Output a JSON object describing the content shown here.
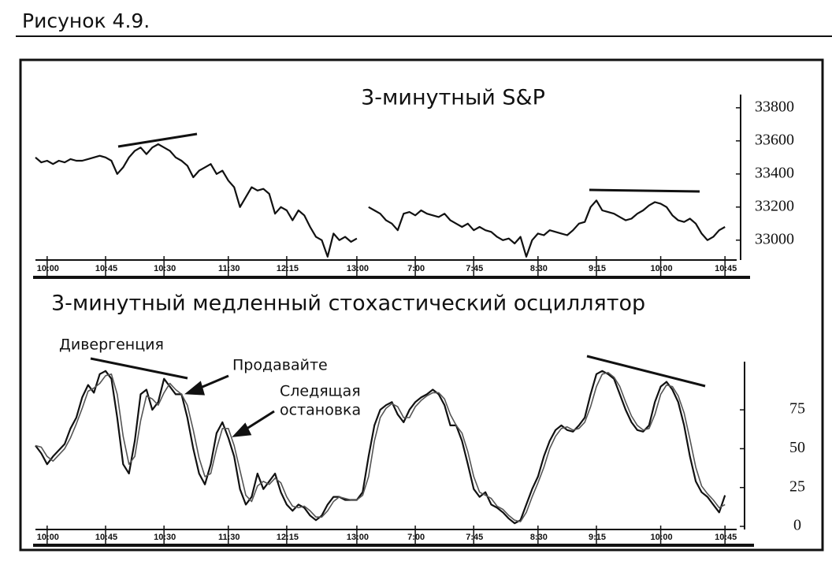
{
  "figure_label": "Рисунок 4.9.",
  "chart_data": [
    {
      "type": "line",
      "title": "3-минутный S&P",
      "x": [
        0,
        1,
        2,
        3,
        4,
        5,
        6,
        7,
        8,
        9,
        10,
        11,
        12,
        13,
        14,
        15,
        16,
        17,
        18,
        19,
        20,
        21,
        22,
        23,
        24,
        25,
        26,
        27,
        28,
        29,
        30,
        31,
        32,
        33,
        34,
        35,
        36,
        37,
        38,
        39,
        40,
        41,
        42,
        43,
        44,
        45,
        46,
        47,
        48,
        49,
        50,
        51,
        52,
        53,
        54,
        55,
        56,
        57,
        58,
        59,
        60,
        61,
        62,
        63,
        64,
        65,
        66,
        67,
        68,
        69,
        70,
        71,
        72,
        73,
        74,
        75,
        76,
        77,
        78,
        79,
        80,
        81,
        82,
        83,
        84,
        85,
        86,
        87,
        88,
        89,
        90,
        91,
        92,
        93,
        94,
        95,
        96,
        97,
        98,
        99,
        100,
        101,
        102,
        103,
        104,
        105,
        106,
        107,
        108,
        109,
        110,
        111,
        112,
        113,
        114,
        115,
        116,
        117,
        118
      ],
      "series": [
        {
          "color": "#111111",
          "values": [
            33500,
            33470,
            33480,
            33460,
            33480,
            33470,
            33490,
            33480,
            33480,
            33490,
            33500,
            33510,
            33500,
            33480,
            33400,
            33440,
            33500,
            33540,
            33560,
            33520,
            33560,
            33580,
            33560,
            33540,
            33500,
            33480,
            33450,
            33380,
            33420,
            33440,
            33460,
            33400,
            33420,
            33360,
            33320,
            33200,
            33260,
            33320,
            33300,
            33310,
            33280,
            33160,
            33200,
            33180,
            33120,
            33180,
            33150,
            33080,
            33020,
            33000,
            32900,
            33040,
            33000,
            33020,
            32990,
            33010,
            null,
            33200,
            33180,
            33160,
            33120,
            33100,
            33060,
            33160,
            33170,
            33150,
            33180,
            33160,
            33150,
            33140,
            33160,
            33120,
            33100,
            33080,
            33100,
            33060,
            33080,
            33060,
            33050,
            33020,
            33000,
            33010,
            32980,
            33020,
            32900,
            33000,
            33040,
            33030,
            33060,
            33050,
            33040,
            33030,
            33060,
            33100,
            33110,
            33200,
            33240,
            33180,
            33170,
            33160,
            33140,
            33120,
            33130,
            33160,
            33180,
            33210,
            33230,
            33220,
            33200,
            33150,
            33120,
            33110,
            33130,
            33100,
            33040,
            33000,
            33020,
            33060,
            33080
          ]
        }
      ],
      "xlim": [
        0,
        120
      ],
      "xticks": [
        {
          "value": 2,
          "label": "10:00"
        },
        {
          "value": 12,
          "label": "10:45"
        },
        {
          "value": 22,
          "label": "10:30"
        },
        {
          "value": 33,
          "label": "11:30"
        },
        {
          "value": 43,
          "label": "12:15"
        },
        {
          "value": 55,
          "label": "13:00"
        },
        {
          "value": 65,
          "label": "7:00"
        },
        {
          "value": 75,
          "label": "7:45"
        },
        {
          "value": 86,
          "label": "8:30"
        },
        {
          "value": 96,
          "label": "9:15"
        },
        {
          "value": 107,
          "label": "10:00"
        },
        {
          "value": 118,
          "label": "10:45"
        }
      ],
      "ylim": [
        32880,
        33880
      ],
      "yticks": [
        33000,
        33200,
        33400,
        33600,
        33800
      ]
    },
    {
      "type": "line",
      "title": "3-минутный медленный стохастический осциллятор",
      "annotations": [
        "Дивергенция",
        "Продавайте",
        "Следящая",
        "остановка"
      ],
      "x": [
        0,
        1,
        2,
        3,
        4,
        5,
        6,
        7,
        8,
        9,
        10,
        11,
        12,
        13,
        14,
        15,
        16,
        17,
        18,
        19,
        20,
        21,
        22,
        23,
        24,
        25,
        26,
        27,
        28,
        29,
        30,
        31,
        32,
        33,
        34,
        35,
        36,
        37,
        38,
        39,
        40,
        41,
        42,
        43,
        44,
        45,
        46,
        47,
        48,
        49,
        50,
        51,
        52,
        53,
        54,
        55,
        56,
        57,
        58,
        59,
        60,
        61,
        62,
        63,
        64,
        65,
        66,
        67,
        68,
        69,
        70,
        71,
        72,
        73,
        74,
        75,
        76,
        77,
        78,
        79,
        80,
        81,
        82,
        83,
        84,
        85,
        86,
        87,
        88,
        89,
        90,
        91,
        92,
        93,
        94,
        95,
        96,
        97,
        98,
        99,
        100,
        101,
        102,
        103,
        104,
        105,
        106,
        107,
        108,
        109,
        110,
        111,
        112,
        113,
        114,
        115,
        116,
        117,
        118
      ],
      "series": [
        {
          "color": "#111111",
          "values": [
            52,
            47,
            40,
            45,
            49,
            53,
            63,
            70,
            83,
            91,
            86,
            98,
            100,
            95,
            70,
            40,
            34,
            55,
            85,
            88,
            75,
            80,
            95,
            90,
            85,
            85,
            70,
            50,
            34,
            27,
            40,
            60,
            67,
            57,
            45,
            24,
            14,
            19,
            34,
            24,
            29,
            34,
            22,
            14,
            10,
            14,
            12,
            7,
            4,
            7,
            14,
            19,
            19,
            17,
            17,
            17,
            22,
            45,
            65,
            75,
            78,
            80,
            72,
            67,
            75,
            80,
            83,
            85,
            88,
            85,
            78,
            65,
            65,
            55,
            40,
            24,
            19,
            22,
            14,
            12,
            9,
            5,
            2,
            4,
            14,
            24,
            32,
            45,
            55,
            62,
            65,
            62,
            61,
            65,
            70,
            85,
            98,
            100,
            98,
            95,
            85,
            75,
            67,
            62,
            61,
            65,
            80,
            90,
            93,
            88,
            80,
            65,
            45,
            29,
            22,
            19,
            14,
            9,
            20
          ]
        },
        {
          "color": "#555555",
          "values": [
            52,
            51,
            45,
            42,
            46,
            50,
            57,
            66,
            76,
            87,
            89,
            92,
            97,
            98,
            85,
            58,
            40,
            45,
            68,
            84,
            82,
            78,
            86,
            92,
            88,
            85,
            78,
            62,
            44,
            32,
            34,
            50,
            63,
            63,
            52,
            36,
            20,
            16,
            26,
            29,
            27,
            31,
            28,
            19,
            13,
            12,
            13,
            10,
            6,
            6,
            10,
            16,
            19,
            18,
            17,
            17,
            20,
            32,
            55,
            70,
            76,
            79,
            77,
            70,
            70,
            77,
            81,
            84,
            86,
            86,
            82,
            72,
            65,
            60,
            48,
            32,
            22,
            20,
            18,
            13,
            11,
            7,
            4,
            3,
            9,
            19,
            28,
            38,
            50,
            58,
            63,
            64,
            62,
            63,
            67,
            77,
            90,
            98,
            99,
            96,
            90,
            80,
            71,
            65,
            62,
            63,
            72,
            85,
            91,
            90,
            84,
            73,
            56,
            38,
            26,
            21,
            17,
            12,
            14
          ]
        }
      ],
      "xlim": [
        0,
        120
      ],
      "xticks": [
        {
          "value": 2,
          "label": "10:00"
        },
        {
          "value": 12,
          "label": "10:45"
        },
        {
          "value": 22,
          "label": "10:30"
        },
        {
          "value": 33,
          "label": "11:30"
        },
        {
          "value": 43,
          "label": "12:15"
        },
        {
          "value": 55,
          "label": "13:00"
        },
        {
          "value": 65,
          "label": "7:00"
        },
        {
          "value": 75,
          "label": "7:45"
        },
        {
          "value": 86,
          "label": "8:30"
        },
        {
          "value": 96,
          "label": "9:15"
        },
        {
          "value": 107,
          "label": "10:00"
        },
        {
          "value": 118,
          "label": "10:45"
        }
      ],
      "ylim": [
        -2,
        106
      ],
      "yticks": [
        0,
        25,
        50,
        75
      ]
    }
  ]
}
